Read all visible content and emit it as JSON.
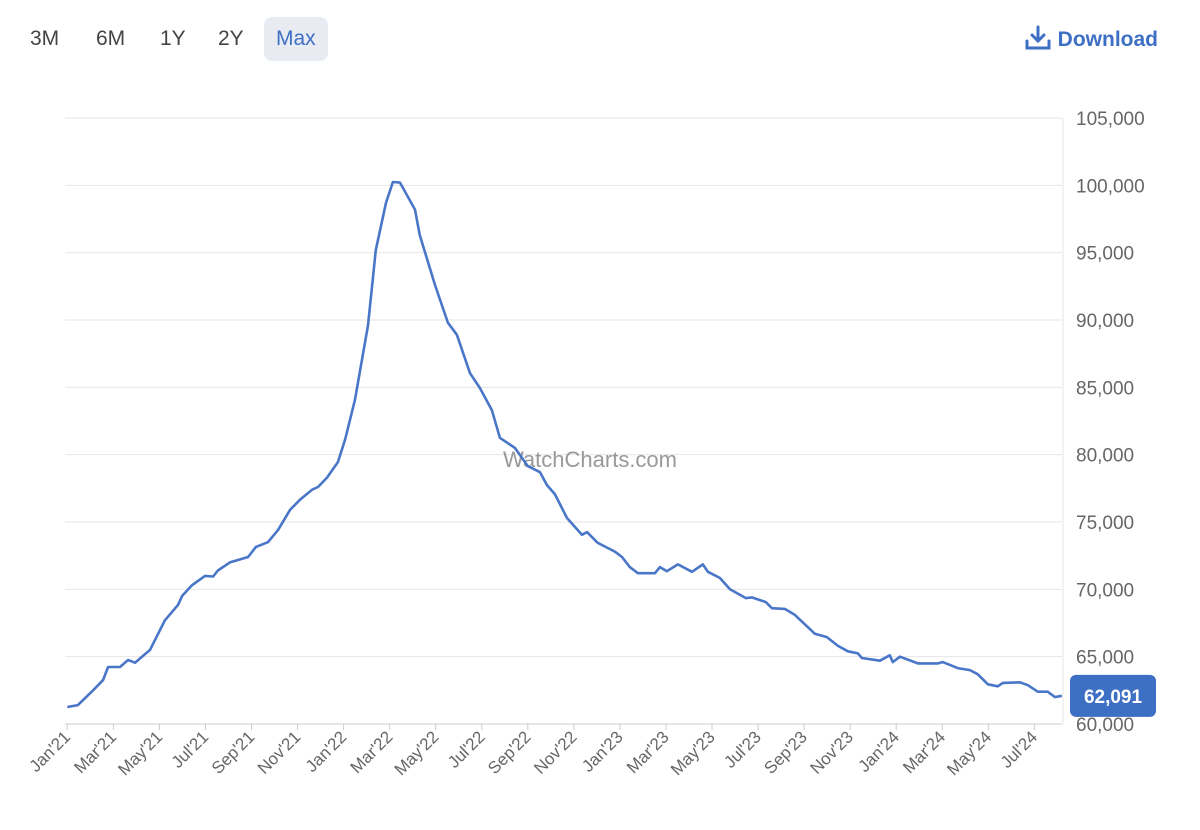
{
  "ranges": [
    "3M",
    "6M",
    "1Y",
    "2Y",
    "Max"
  ],
  "active_range": "Max",
  "download": "Download",
  "chart_data": {
    "type": "line",
    "watermark": "WatchCharts.com",
    "series": [
      {
        "color": "#4a76c8",
        "x": [
          0,
          0.46,
          1.12,
          1.55,
          1.77,
          2.29,
          2.64,
          2.94,
          3.59,
          4.24,
          4.81,
          4.98,
          5.41,
          5.98,
          6.33,
          6.54,
          7.06,
          7.85,
          8.19,
          8.71,
          9.15,
          9.67,
          10.1,
          10.63,
          10.89,
          11.28,
          11.75,
          12.06,
          12.49,
          13.06,
          13.4,
          13.84,
          14.14,
          14.45,
          15.1,
          15.31,
          15.97,
          16.53,
          16.92,
          17.49,
          17.92,
          18.44,
          18.79,
          19.44,
          20.0,
          20.53,
          20.83,
          21.18,
          21.7,
          22.35,
          22.57,
          23.04,
          23.78,
          24.09,
          24.43,
          24.78,
          25.52,
          25.74,
          26.04,
          26.52,
          27.13,
          27.6,
          27.82,
          28.34,
          28.78,
          29.47,
          29.73,
          30.34,
          30.6,
          31.16,
          31.6,
          32.47,
          32.99,
          33.47,
          33.9,
          34.33,
          34.51,
          35.29,
          35.72,
          35.85,
          36.16,
          36.94,
          37.81,
          38.02,
          38.67,
          39.2,
          39.54,
          39.98,
          40.41,
          40.63,
          41.37,
          41.72,
          42.15,
          42.58,
          42.89,
          43.19
        ],
        "values": [
          61260,
          61400,
          62500,
          63250,
          64230,
          64230,
          64750,
          64550,
          65500,
          67700,
          68850,
          69500,
          70300,
          71000,
          70950,
          71400,
          72000,
          72400,
          73150,
          73500,
          74400,
          75900,
          76650,
          77400,
          77600,
          78300,
          79450,
          81100,
          84050,
          89600,
          95200,
          98700,
          100250,
          100200,
          98200,
          96300,
          92600,
          89800,
          88900,
          86050,
          84950,
          83300,
          81250,
          80500,
          79150,
          78700,
          77750,
          77050,
          75300,
          74050,
          74250,
          73450,
          72800,
          72400,
          71650,
          71200,
          71200,
          71650,
          71350,
          71850,
          71300,
          71850,
          71300,
          70850,
          70000,
          69350,
          69400,
          69050,
          68600,
          68550,
          68100,
          66700,
          66450,
          65800,
          65400,
          65250,
          64900,
          64700,
          65100,
          64600,
          65000,
          64500,
          64500,
          64600,
          64150,
          64000,
          63700,
          62950,
          62800,
          63050,
          63100,
          62880,
          62400,
          62400,
          62000,
          62091
        ]
      }
    ],
    "current": {
      "value": 62091,
      "label": "62,091"
    },
    "xlim": [
      -0.1,
      43.2
    ],
    "xticks": [
      {
        "value": 0,
        "label": "Jan'21"
      },
      {
        "value": 2,
        "label": "Mar'21"
      },
      {
        "value": 4,
        "label": "May'21"
      },
      {
        "value": 6,
        "label": "Jul'21"
      },
      {
        "value": 8,
        "label": "Sep'21"
      },
      {
        "value": 10,
        "label": "Nov'21"
      },
      {
        "value": 12,
        "label": "Jan'22"
      },
      {
        "value": 14,
        "label": "Mar'22"
      },
      {
        "value": 16,
        "label": "May'22"
      },
      {
        "value": 18,
        "label": "Jul'22"
      },
      {
        "value": 20,
        "label": "Sep'22"
      },
      {
        "value": 22,
        "label": "Nov'22"
      },
      {
        "value": 24,
        "label": "Jan'23"
      },
      {
        "value": 26,
        "label": "Mar'23"
      },
      {
        "value": 28,
        "label": "May'23"
      },
      {
        "value": 30,
        "label": "Jul'23"
      },
      {
        "value": 32,
        "label": "Sep'23"
      },
      {
        "value": 34,
        "label": "Nov'23"
      },
      {
        "value": 36,
        "label": "Jan'24"
      },
      {
        "value": 38,
        "label": "Mar'24"
      },
      {
        "value": 40,
        "label": "May'24"
      },
      {
        "value": 42,
        "label": "Jul'24"
      }
    ],
    "ylim": [
      60000,
      105000
    ],
    "yticks": [
      {
        "value": 60000,
        "label": "60,000"
      },
      {
        "value": 65000,
        "label": "65,000"
      },
      {
        "value": 70000,
        "label": "70,000"
      },
      {
        "value": 75000,
        "label": "75,000"
      },
      {
        "value": 80000,
        "label": "80,000"
      },
      {
        "value": 85000,
        "label": "85,000"
      },
      {
        "value": 90000,
        "label": "90,000"
      },
      {
        "value": 95000,
        "label": "95,000"
      },
      {
        "value": 100000,
        "label": "100,000"
      },
      {
        "value": 105000,
        "label": "105,000"
      }
    ],
    "grid": true
  }
}
